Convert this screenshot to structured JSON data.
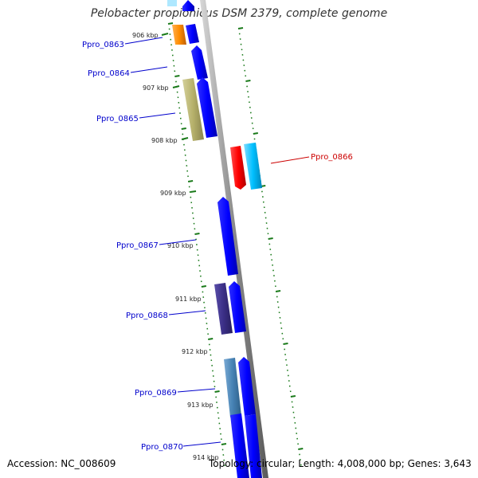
{
  "title": "Pelobacter propionicus DSM 2379, complete genome",
  "footer": {
    "accession_label": "Accession:",
    "accession": "NC_008609",
    "topology_label": "Topology:",
    "topology": "circular",
    "length_label": "Length:",
    "length": "4,008,000 bp",
    "genes_label": "Genes:",
    "genes": "3,643"
  },
  "kbp_ticks": [
    {
      "label": "906 kbp"
    },
    {
      "label": "907 kbp"
    },
    {
      "label": "908 kbp"
    },
    {
      "label": "909 kbp"
    },
    {
      "label": "910 kbp"
    },
    {
      "label": "911 kbp"
    },
    {
      "label": "912 kbp"
    },
    {
      "label": "913 kbp"
    },
    {
      "label": "914 kbp"
    }
  ],
  "genes": [
    {
      "name": "Ppro_0863",
      "color": "#0000cc"
    },
    {
      "name": "Ppro_0864",
      "color": "#0000cc"
    },
    {
      "name": "Ppro_0865",
      "color": "#0000cc"
    },
    {
      "name": "Ppro_0866",
      "color": "#cc0000"
    },
    {
      "name": "Ppro_0867",
      "color": "#0000cc"
    },
    {
      "name": "Ppro_0868",
      "color": "#0000cc"
    },
    {
      "name": "Ppro_0869",
      "color": "#0000cc"
    },
    {
      "name": "Ppro_0870",
      "color": "#0000cc"
    }
  ],
  "colors": {
    "backbone": "#8a8a8a",
    "tick": "#1a7a1a",
    "blue_gene": "#0000ff",
    "red_gene": "#ff0000",
    "cyan_gene": "#00bfff",
    "olive_gene": "#b5b06a",
    "orange_gene": "#ff8c00",
    "purple_gene": "#3b2f86",
    "steel_gene": "#4682b4"
  }
}
